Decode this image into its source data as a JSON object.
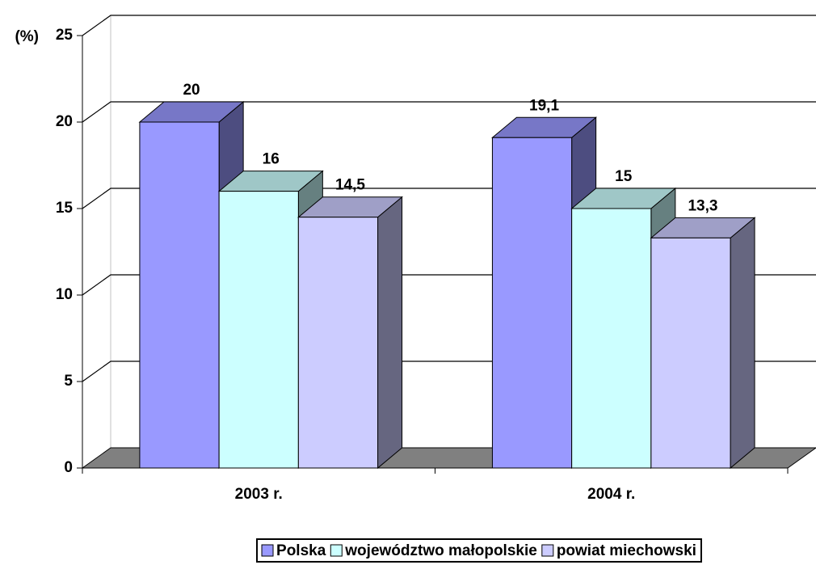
{
  "chart_data": {
    "type": "bar3d",
    "y_label": "(%)",
    "categories": [
      "2003 r.",
      "2004 r."
    ],
    "series": [
      {
        "name": "Polska",
        "color": "#9999ff",
        "values": [
          20,
          19.1
        ],
        "value_labels": [
          "20",
          "19,1"
        ]
      },
      {
        "name": "województwo małopolskie",
        "color": "#ccffff",
        "values": [
          16,
          15
        ],
        "value_labels": [
          "16",
          "15"
        ]
      },
      {
        "name": "powiat miechowski",
        "color": "#ccccff",
        "values": [
          14.5,
          13.3
        ],
        "value_labels": [
          "14,5",
          "13,3"
        ]
      }
    ],
    "ylim": [
      0,
      25
    ],
    "yticks": [
      0,
      5,
      10,
      15,
      20,
      25
    ],
    "grid": true,
    "legend": "bottom"
  }
}
